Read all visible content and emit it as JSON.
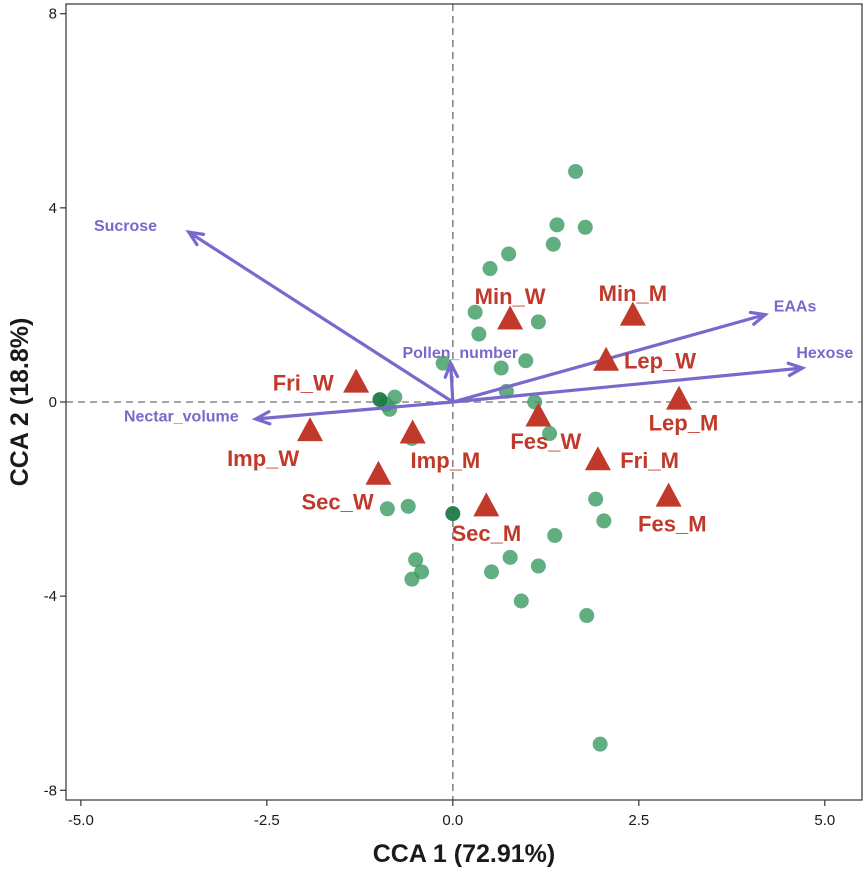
{
  "chart_data": {
    "type": "scatter",
    "title": "",
    "xlabel": "CCA 1 (72.91%)",
    "ylabel": "CCA 2 (18.8%)",
    "xlim": [
      -5.2,
      5.5
    ],
    "ylim": [
      -8.2,
      8.2
    ],
    "xticks": [
      -5.0,
      -2.5,
      0.0,
      2.5,
      5.0
    ],
    "xtick_labels": [
      "-5.0",
      "-2.5",
      "0.0",
      "2.5",
      "5.0"
    ],
    "yticks": [
      -8,
      -4,
      0,
      4,
      8
    ],
    "ytick_labels": [
      "-8",
      "-4",
      "0",
      "4",
      "8"
    ],
    "grid": false,
    "reference_lines": [
      0,
      0
    ],
    "colors": {
      "points": "#3a9a62",
      "points_dark": "#1e7a44",
      "sites": "#c0392b",
      "vectors": "#7a68cc",
      "axis": "#333333",
      "refline": "#888888"
    },
    "points": [
      {
        "x": 1.65,
        "y": 4.75
      },
      {
        "x": 1.4,
        "y": 3.65
      },
      {
        "x": 1.78,
        "y": 3.6
      },
      {
        "x": 1.35,
        "y": 3.25
      },
      {
        "x": 0.75,
        "y": 3.05
      },
      {
        "x": 0.5,
        "y": 2.75
      },
      {
        "x": 0.3,
        "y": 1.85
      },
      {
        "x": 1.15,
        "y": 1.65
      },
      {
        "x": 0.35,
        "y": 1.4
      },
      {
        "x": 0.98,
        "y": 0.85
      },
      {
        "x": 0.65,
        "y": 0.7
      },
      {
        "x": -0.13,
        "y": 0.8
      },
      {
        "x": 0.72,
        "y": 0.22
      },
      {
        "x": -0.78,
        "y": 0.1
      },
      {
        "x": -0.9,
        "y": -0.05
      },
      {
        "x": -0.85,
        "y": -0.15
      },
      {
        "x": 1.1,
        "y": 0.0
      },
      {
        "x": 1.3,
        "y": -0.65
      },
      {
        "x": -0.55,
        "y": -0.75
      },
      {
        "x": 1.92,
        "y": -2.0
      },
      {
        "x": 2.03,
        "y": -2.45
      },
      {
        "x": -0.6,
        "y": -2.15
      },
      {
        "x": -0.88,
        "y": -2.2
      },
      {
        "x": 1.37,
        "y": -2.75
      },
      {
        "x": 0.77,
        "y": -3.2
      },
      {
        "x": 1.15,
        "y": -3.38
      },
      {
        "x": -0.5,
        "y": -3.25
      },
      {
        "x": -0.42,
        "y": -3.5
      },
      {
        "x": 0.52,
        "y": -3.5
      },
      {
        "x": -0.55,
        "y": -3.65
      },
      {
        "x": 0.92,
        "y": -4.1
      },
      {
        "x": 1.8,
        "y": -4.4
      },
      {
        "x": 1.98,
        "y": -7.05
      }
    ],
    "points_dark": [
      {
        "x": -0.98,
        "y": 0.05
      },
      {
        "x": 0.0,
        "y": -2.3
      }
    ],
    "sites": [
      {
        "label": "Min_W",
        "x": 0.77,
        "y": 1.7,
        "lx": 0.77,
        "ly": 2.18,
        "anchor": "middle"
      },
      {
        "label": "Min_M",
        "x": 2.42,
        "y": 1.78,
        "lx": 2.42,
        "ly": 2.25,
        "anchor": "middle"
      },
      {
        "label": "Lep_W",
        "x": 2.06,
        "y": 0.85,
        "lx": 2.3,
        "ly": 0.85,
        "anchor": "start"
      },
      {
        "label": "Lep_M",
        "x": 3.04,
        "y": 0.05,
        "lx": 3.1,
        "ly": -0.42,
        "anchor": "middle"
      },
      {
        "label": "Fri_W",
        "x": -1.3,
        "y": 0.4,
        "lx": -1.6,
        "ly": 0.4,
        "anchor": "end"
      },
      {
        "label": "Imp_W",
        "x": -1.92,
        "y": -0.6,
        "lx": -2.55,
        "ly": -1.15,
        "anchor": "middle"
      },
      {
        "label": "Imp_M",
        "x": -0.54,
        "y": -0.65,
        "lx": -0.1,
        "ly": -1.2,
        "anchor": "middle"
      },
      {
        "label": "Fes_W",
        "x": 1.15,
        "y": -0.3,
        "lx": 1.25,
        "ly": -0.8,
        "anchor": "middle"
      },
      {
        "label": "Fri_M",
        "x": 1.95,
        "y": -1.2,
        "lx": 2.25,
        "ly": -1.2,
        "anchor": "start"
      },
      {
        "label": "Fes_M",
        "x": 2.9,
        "y": -1.95,
        "lx": 2.95,
        "ly": -2.5,
        "anchor": "middle"
      },
      {
        "label": "Sec_W",
        "x": -1.0,
        "y": -1.5,
        "lx": -1.55,
        "ly": -2.05,
        "anchor": "middle"
      },
      {
        "label": "Sec_M",
        "x": 0.45,
        "y": -2.15,
        "lx": 0.45,
        "ly": -2.7,
        "anchor": "middle"
      }
    ],
    "vectors": [
      {
        "name": "Sucrose",
        "x": -3.55,
        "y": 3.5,
        "lx": -4.4,
        "ly": 3.65,
        "anchor": "middle"
      },
      {
        "name": "EAAs",
        "x": 4.2,
        "y": 1.8,
        "lx": 4.6,
        "ly": 1.99,
        "anchor": "middle"
      },
      {
        "name": "Hexose",
        "x": 4.7,
        "y": 0.7,
        "lx": 5.0,
        "ly": 1.03,
        "anchor": "middle"
      },
      {
        "name": "Pollen_number",
        "x": -0.03,
        "y": 0.8,
        "lx": 0.1,
        "ly": 1.03,
        "anchor": "middle"
      },
      {
        "name": "Nectar_volume",
        "x": -2.65,
        "y": -0.35,
        "lx": -3.65,
        "ly": -0.28,
        "anchor": "middle"
      }
    ]
  }
}
